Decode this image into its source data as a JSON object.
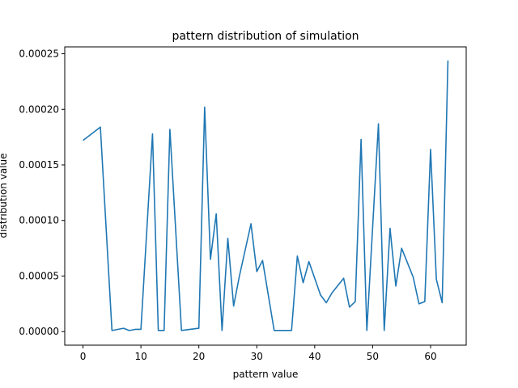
{
  "chart_data": {
    "type": "line",
    "title": "pattern distribution of simulation",
    "xlabel": "pattern value",
    "ylabel": "distribution value",
    "xlim": [
      -3.15,
      66.15
    ],
    "ylim": [
      -1.22e-05,
      0.0002562
    ],
    "x_ticks": [
      0,
      10,
      20,
      30,
      40,
      50,
      60
    ],
    "y_ticks": [
      0.0,
      5e-05,
      0.0001,
      0.00015,
      0.0002,
      0.00025
    ],
    "y_tick_labels": [
      "0.00000",
      "0.00005",
      "0.00010",
      "0.00015",
      "0.00020",
      "0.00025"
    ],
    "grid": false,
    "line_color": "#1f77b4",
    "series": [
      {
        "x": [
          0,
          3,
          5,
          7,
          8,
          9,
          10,
          12,
          13,
          14,
          15,
          17,
          20,
          21,
          22,
          23,
          24,
          25,
          26,
          27,
          29,
          30,
          31,
          33,
          36,
          37,
          38,
          39,
          41,
          42,
          43,
          45,
          46,
          47,
          48,
          49,
          51,
          52,
          53,
          54,
          55,
          57,
          58,
          59,
          60,
          61,
          62,
          63
        ],
        "values": [
          0.000172,
          0.000184,
          1e-06,
          3e-06,
          1e-06,
          2e-06,
          2e-06,
          0.000178,
          1e-06,
          1e-06,
          0.000182,
          1e-06,
          3e-06,
          0.000202,
          6.5e-05,
          0.000106,
          1e-06,
          8.4e-05,
          2.3e-05,
          5e-05,
          9.7e-05,
          5.4e-05,
          6.4e-05,
          1e-06,
          1e-06,
          6.8e-05,
          4.4e-05,
          6.3e-05,
          3.3e-05,
          2.6e-05,
          3.5e-05,
          4.8e-05,
          2.2e-05,
          2.7e-05,
          0.000173,
          1e-06,
          0.000187,
          1e-06,
          9.3e-05,
          4.1e-05,
          7.5e-05,
          4.9e-05,
          2.5e-05,
          2.7e-05,
          0.000164,
          4.7e-05,
          2.6e-05,
          0.000244
        ]
      }
    ]
  }
}
